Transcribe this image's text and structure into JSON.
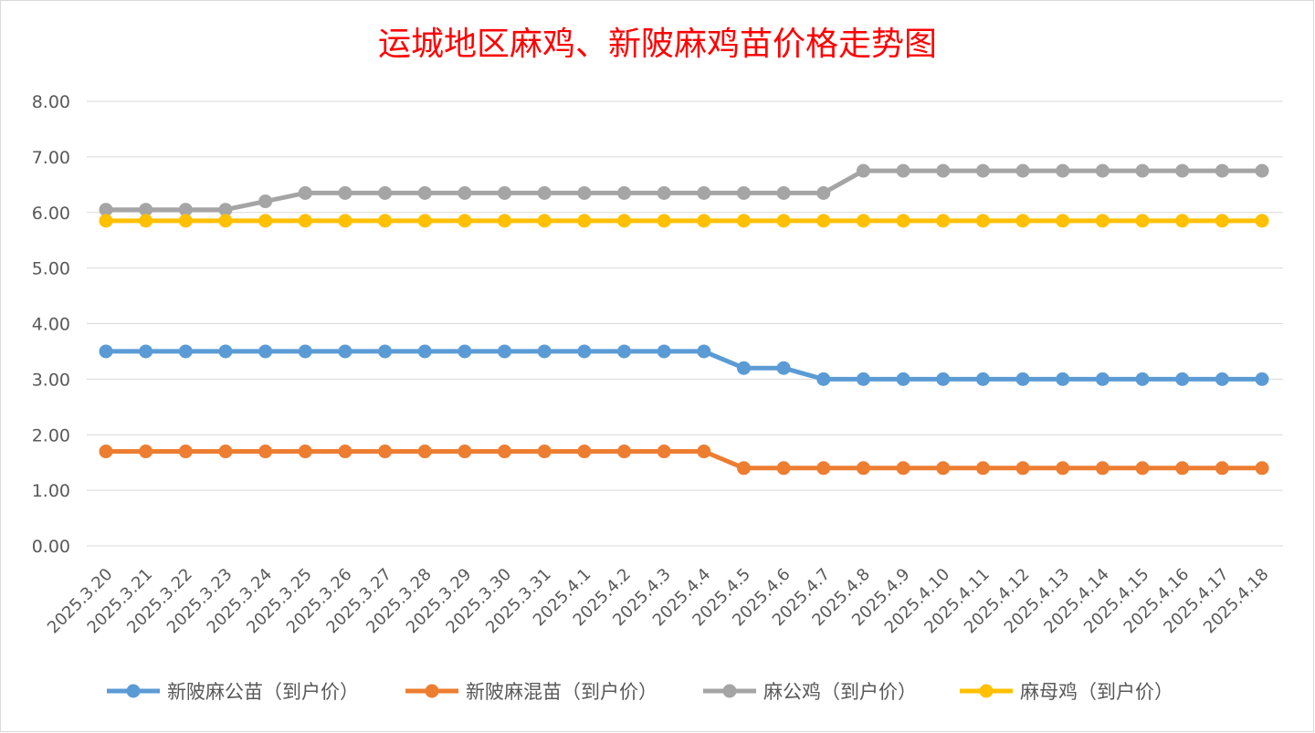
{
  "chart_data": {
    "type": "line",
    "title": "运城地区麻鸡、新陂麻鸡苗价格走势图",
    "xlabel": "",
    "ylabel": "",
    "ylim": [
      0,
      8
    ],
    "ytick_step": 1,
    "ytick_labels": [
      "0.00",
      "1.00",
      "2.00",
      "3.00",
      "4.00",
      "5.00",
      "6.00",
      "7.00",
      "8.00"
    ],
    "grid": true,
    "legend_position": "bottom",
    "categories": [
      "2025.3.20",
      "2025.3.21",
      "2025.3.22",
      "2025.3.23",
      "2025.3.24",
      "2025.3.25",
      "2025.3.26",
      "2025.3.27",
      "2025.3.28",
      "2025.3.29",
      "2025.3.30",
      "2025.3.31",
      "2025.4.1",
      "2025.4.2",
      "2025.4.3",
      "2025.4.4",
      "2025.4.5",
      "2025.4.6",
      "2025.4.7",
      "2025.4.8",
      "2025.4.9",
      "2025.4.10",
      "2025.4.11",
      "2025.4.12",
      "2025.4.13",
      "2025.4.14",
      "2025.4.15",
      "2025.4.16",
      "2025.4.17",
      "2025.4.18"
    ],
    "series": [
      {
        "name": "新陂麻公苗（到户价）",
        "color": "#5b9bd5",
        "values": [
          3.5,
          3.5,
          3.5,
          3.5,
          3.5,
          3.5,
          3.5,
          3.5,
          3.5,
          3.5,
          3.5,
          3.5,
          3.5,
          3.5,
          3.5,
          3.5,
          3.2,
          3.2,
          3.0,
          3.0,
          3.0,
          3.0,
          3.0,
          3.0,
          3.0,
          3.0,
          3.0,
          3.0,
          3.0,
          3.0
        ]
      },
      {
        "name": "新陂麻混苗（到户价）",
        "color": "#ed7d31",
        "values": [
          1.7,
          1.7,
          1.7,
          1.7,
          1.7,
          1.7,
          1.7,
          1.7,
          1.7,
          1.7,
          1.7,
          1.7,
          1.7,
          1.7,
          1.7,
          1.7,
          1.4,
          1.4,
          1.4,
          1.4,
          1.4,
          1.4,
          1.4,
          1.4,
          1.4,
          1.4,
          1.4,
          1.4,
          1.4,
          1.4
        ]
      },
      {
        "name": "麻公鸡（到户价）",
        "color": "#a5a5a5",
        "values": [
          6.05,
          6.05,
          6.05,
          6.05,
          6.2,
          6.35,
          6.35,
          6.35,
          6.35,
          6.35,
          6.35,
          6.35,
          6.35,
          6.35,
          6.35,
          6.35,
          6.35,
          6.35,
          6.35,
          6.75,
          6.75,
          6.75,
          6.75,
          6.75,
          6.75,
          6.75,
          6.75,
          6.75,
          6.75,
          6.75
        ]
      },
      {
        "name": "麻母鸡（到户价）",
        "color": "#ffc000",
        "values": [
          5.85,
          5.85,
          5.85,
          5.85,
          5.85,
          5.85,
          5.85,
          5.85,
          5.85,
          5.85,
          5.85,
          5.85,
          5.85,
          5.85,
          5.85,
          5.85,
          5.85,
          5.85,
          5.85,
          5.85,
          5.85,
          5.85,
          5.85,
          5.85,
          5.85,
          5.85,
          5.85,
          5.85,
          5.85,
          5.85
        ]
      }
    ]
  }
}
